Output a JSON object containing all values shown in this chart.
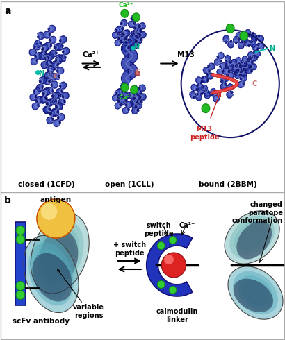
{
  "panel_a_label": "a",
  "panel_b_label": "b",
  "closed_label": "closed (1CFD)",
  "open_label": "open (1CLL)",
  "bound_label": "bound (2BBM)",
  "arrow1_label": "Ca²⁺",
  "arrow2_label": "M13",
  "n_label": "N",
  "c_label": "C",
  "m13_label": "M13\npeptide",
  "antigen_label": "antigen",
  "variable_label": "variable\nregions",
  "scfv_label": "scFv antibody",
  "switch_label": "switch\npeptide",
  "ca2_label": "Ca²⁺",
  "calmodulin_label": "calmodulin\nlinker",
  "changed_label": "changed\nparatope\nconformation",
  "arrow_switch_label": "+ switch\npeptide",
  "colors": {
    "blue1": "#2233aa",
    "blue2": "#3344bb",
    "blue3": "#5566cc",
    "blue4": "#8899dd",
    "blue5": "#aabbee",
    "teal_n": "#00bbaa",
    "pink_c": "#cc8888",
    "green_ca": "#22bb22",
    "red_m13": "#cc2222",
    "yellow_ag": "#f0c040",
    "yellow_hl": "#fff0a0",
    "gray1": "#888888",
    "gray2": "#555555",
    "gray3": "#aaaaaa",
    "teal_vr": "#55aabb",
    "teal_vr2": "#99cccc",
    "dark_vr": "#223355",
    "border": "#aaaaaa",
    "white": "#ffffff",
    "black": "#000000"
  }
}
